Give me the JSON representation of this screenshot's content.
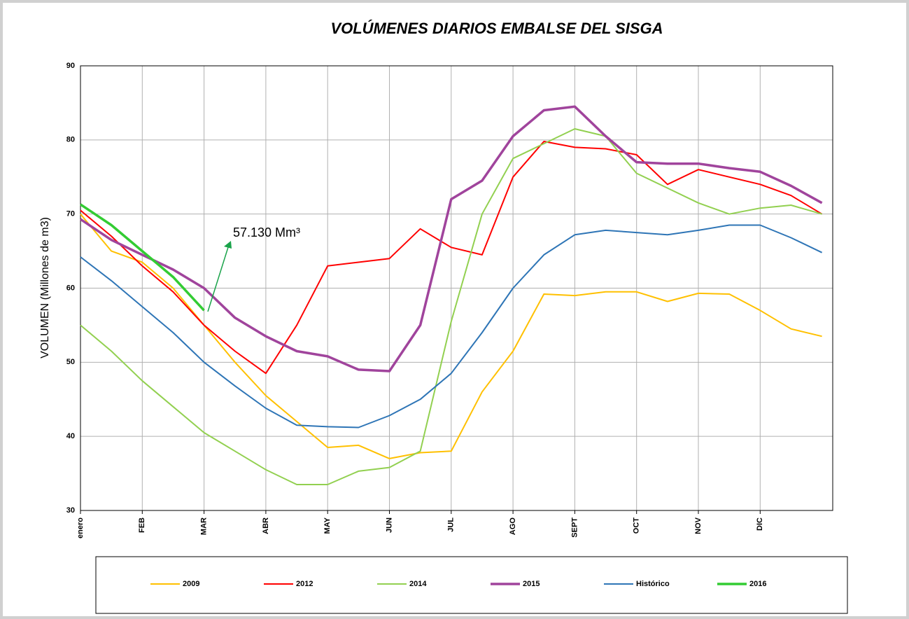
{
  "chart_data": {
    "type": "line",
    "title": "VOLÚMENES DIARIOS EMBALSE DEL SISGA",
    "y_label": "VOLUMEN  (Millones de m3)",
    "annotation": "57.130 Mm³",
    "categories": [
      "enero",
      null,
      "FEB",
      null,
      "MAR",
      null,
      "ABR",
      null,
      "MAY",
      null,
      "JUN",
      null,
      "JUL",
      null,
      "AGO",
      null,
      "SEPT",
      null,
      "OCT",
      null,
      "NOV",
      null,
      "DIC",
      null,
      null
    ],
    "ylim": [
      30,
      90
    ],
    "yticks": [
      30,
      40,
      50,
      60,
      70,
      80,
      90
    ],
    "grid": true,
    "legend": "bottom",
    "series": [
      {
        "name": "2009",
        "color": "#ffc000",
        "width": 2,
        "values": [
          70,
          65,
          63.5,
          60,
          55,
          50,
          45.5,
          42,
          38.5,
          38.8,
          37,
          37.8,
          38,
          46,
          51.5,
          59.2,
          59,
          59.5,
          59.5,
          58.2,
          59.3,
          59.2,
          57,
          54.5,
          53.5
        ]
      },
      {
        "name": "2012",
        "color": "#ff0000",
        "width": 2,
        "values": [
          70.5,
          67,
          63,
          59.5,
          55,
          51.5,
          48.5,
          55,
          63,
          63.5,
          64,
          68,
          65.5,
          64.5,
          75,
          79.8,
          79,
          78.8,
          78,
          74,
          76,
          75,
          74,
          72.5,
          70
        ]
      },
      {
        "name": "2014",
        "color": "#92d050",
        "width": 2,
        "values": [
          55,
          51.5,
          47.5,
          44,
          40.5,
          38,
          35.5,
          33.5,
          33.5,
          35.3,
          35.8,
          38,
          55.5,
          70,
          77.5,
          79.5,
          81.5,
          80.5,
          75.5,
          73.5,
          71.5,
          70,
          70.8,
          71.2,
          70
        ]
      },
      {
        "name": "2015",
        "color": "#a0449c",
        "width": 3.5,
        "values": [
          69.3,
          66.5,
          64.5,
          62.5,
          60,
          56,
          53.5,
          51.5,
          50.8,
          49,
          48.8,
          55,
          72,
          74.5,
          80.5,
          84,
          84.5,
          80.5,
          77,
          76.8,
          76.8,
          76.2,
          75.7,
          73.8,
          71.5
        ]
      },
      {
        "name": "Histórico",
        "color": "#2e75b6",
        "width": 2,
        "values": [
          64.2,
          61,
          57.5,
          54,
          50,
          46.8,
          43.8,
          41.5,
          41.3,
          41.2,
          42.8,
          45,
          48.5,
          54,
          60,
          64.5,
          67.2,
          67.8,
          67.5,
          67.2,
          67.8,
          68.5,
          68.5,
          66.8,
          64.8
        ]
      },
      {
        "name": "2016",
        "color": "#33cc33",
        "width": 3.5,
        "values": [
          71.3,
          68.5,
          65,
          61.5,
          57,
          null,
          null,
          null,
          null,
          null,
          null,
          null,
          null,
          null,
          null,
          null,
          null,
          null,
          null,
          null,
          null,
          null,
          null,
          null,
          null
        ]
      }
    ]
  }
}
